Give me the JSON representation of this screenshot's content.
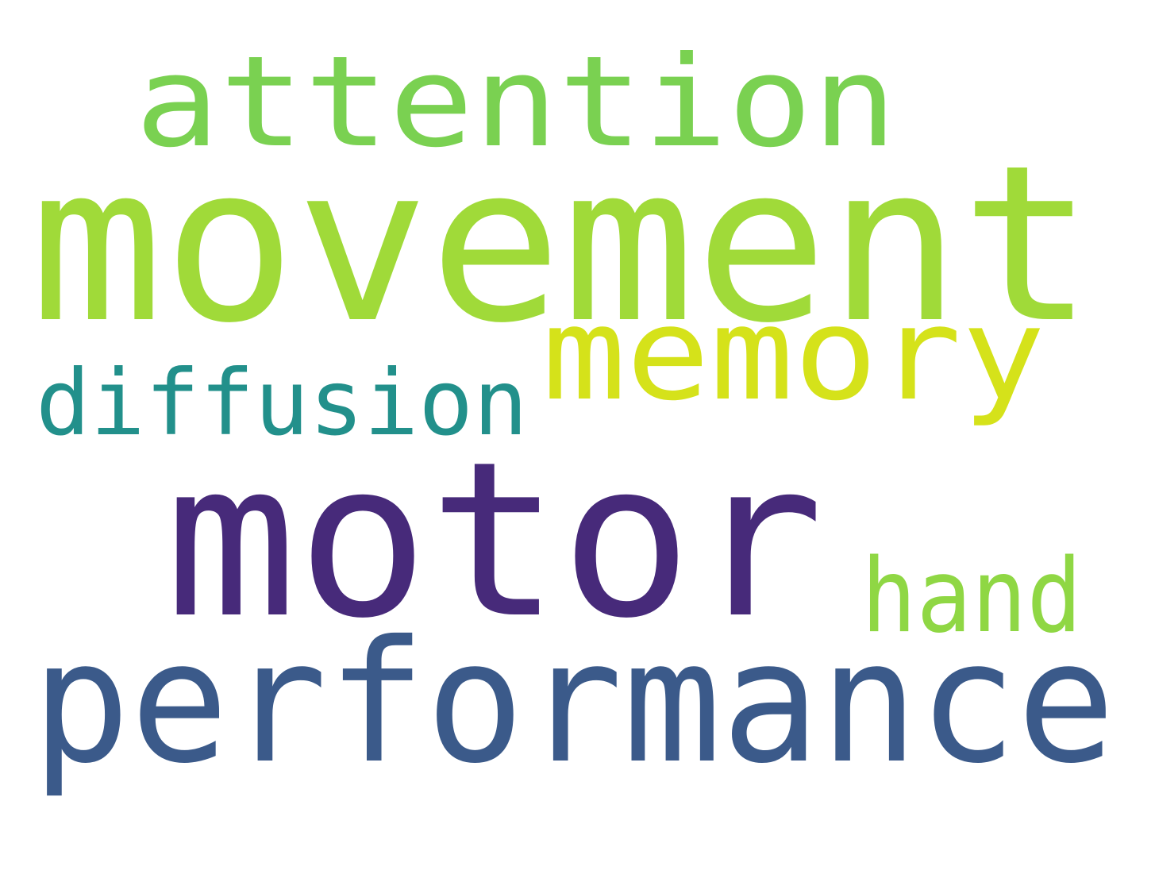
{
  "words": [
    {
      "text": "attention",
      "color": "#7ad151"
    },
    {
      "text": "movement",
      "color": "#a0da39"
    },
    {
      "text": "memory",
      "color": "#d5e21a"
    },
    {
      "text": "diffusion",
      "color": "#22908b"
    },
    {
      "text": "motor",
      "color": "#472a7a"
    },
    {
      "text": "hand",
      "color": "#8fd744"
    },
    {
      "text": "performance",
      "color": "#3b5a8a"
    }
  ]
}
